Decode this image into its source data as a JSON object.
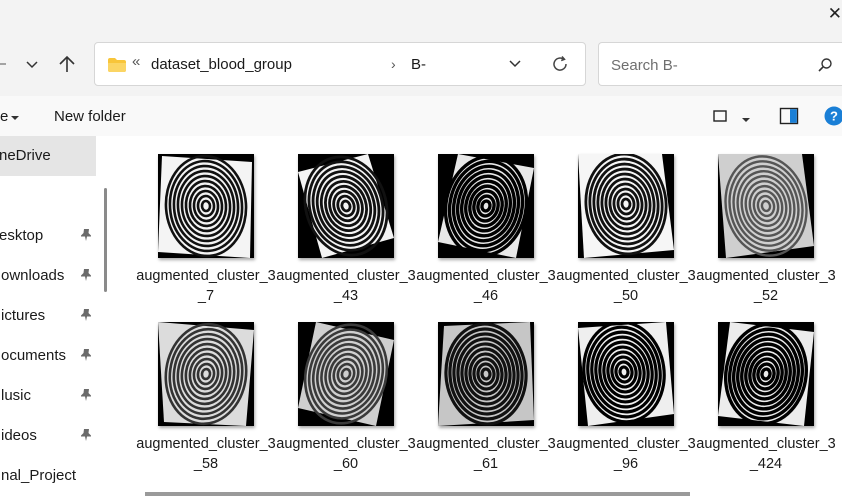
{
  "window": {
    "close_glyph": "✕"
  },
  "address_bar": {
    "path_overflow": "«",
    "breadcrumbs": [
      "dataset_blood_group",
      "B-"
    ],
    "separator": "›"
  },
  "search": {
    "placeholder": "Search B-"
  },
  "command_bar": {
    "left_partial_label": "e",
    "new_folder_label": "New folder"
  },
  "sidebar": {
    "items": [
      {
        "label": "neDrive",
        "pinned": false,
        "selected": true
      },
      {
        "label": "esktop",
        "pinned": true
      },
      {
        "label": "ownloads",
        "pinned": true
      },
      {
        "label": "ictures",
        "pinned": true
      },
      {
        "label": "ocuments",
        "pinned": true
      },
      {
        "label": "lusic",
        "pinned": true
      },
      {
        "label": "ideos",
        "pinned": true
      },
      {
        "label": "nal_Project",
        "pinned": false
      }
    ]
  },
  "files": [
    {
      "name": "augmented_cluster_3_7"
    },
    {
      "name": "augmented_cluster_3_43"
    },
    {
      "name": "augmented_cluster_3_46"
    },
    {
      "name": "augmented_cluster_3_50"
    },
    {
      "name": "augmented_cluster_3_52"
    },
    {
      "name": "augmented_cluster_3_58"
    },
    {
      "name": "augmented_cluster_3_60"
    },
    {
      "name": "augmented_cluster_3_61"
    },
    {
      "name": "augmented_cluster_3_96"
    },
    {
      "name": "augmented_cluster_3_424"
    }
  ],
  "colors": {
    "accent": "#0078d4",
    "folder": "#f8c53a",
    "help": "#1a7fd6"
  }
}
